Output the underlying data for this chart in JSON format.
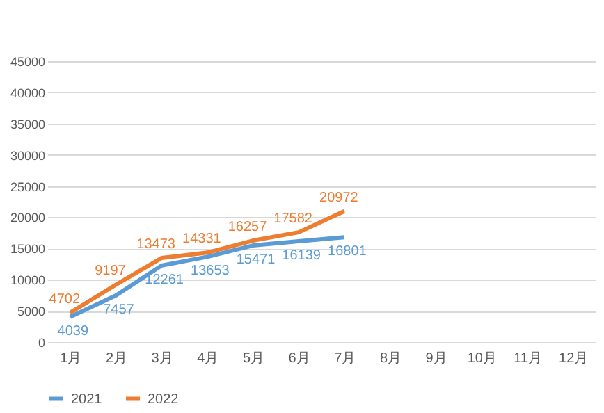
{
  "chart_data": {
    "type": "line",
    "categories": [
      "1月",
      "2月",
      "3月",
      "4月",
      "5月",
      "6月",
      "7月",
      "8月",
      "9月",
      "10月",
      "11月",
      "12月"
    ],
    "series": [
      {
        "name": "2021",
        "color": "#5b9bd5",
        "values": [
          4039,
          7457,
          12261,
          13653,
          15471,
          16139,
          16801,
          null,
          null,
          null,
          null,
          null
        ]
      },
      {
        "name": "2022",
        "color": "#ed7d31",
        "values": [
          4702,
          9197,
          13473,
          14331,
          16257,
          17582,
          20972,
          null,
          null,
          null,
          null,
          null
        ]
      }
    ],
    "ylim": [
      0,
      45000
    ],
    "yticks": [
      0,
      5000,
      10000,
      15000,
      20000,
      25000,
      30000,
      35000,
      40000,
      45000
    ],
    "grid": "y",
    "legend": "bottom",
    "data_labels": true,
    "marker": "none"
  }
}
